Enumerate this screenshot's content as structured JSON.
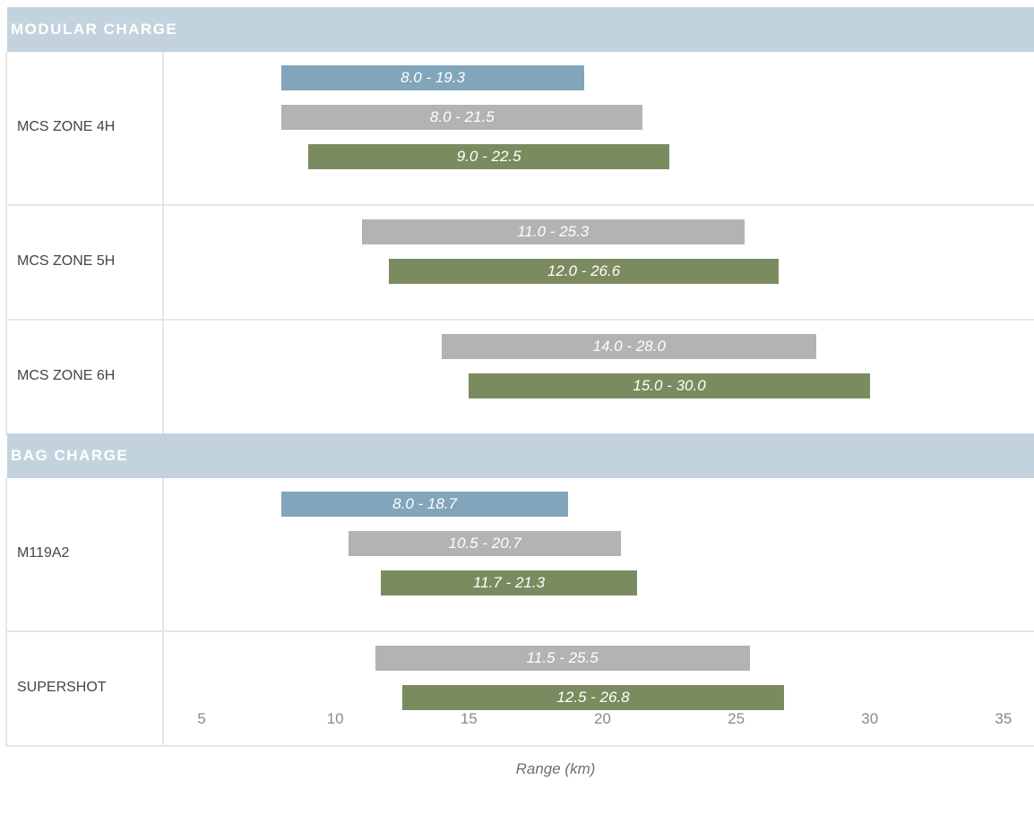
{
  "chart_data": {
    "type": "bar",
    "orientation": "horizontal-range",
    "xlabel": "Range (km)",
    "xlim": [
      5,
      35
    ],
    "xticks": [
      5,
      10,
      15,
      20,
      25,
      30,
      35
    ],
    "grid": false,
    "legend": "none",
    "colors": {
      "blue": "#81a5ba",
      "gray": "#b3b3b3",
      "green": "#7b8b60",
      "header": "#c3d3dd"
    },
    "groups": [
      {
        "name": "MODULAR CHARGE",
        "rows": [
          {
            "label": "MCS ZONE 4H",
            "bars": [
              {
                "color": "blue",
                "min": 8.0,
                "max": 19.3,
                "text": "8.0 - 19.3"
              },
              {
                "color": "gray",
                "min": 8.0,
                "max": 21.5,
                "text": "8.0 - 21.5"
              },
              {
                "color": "green",
                "min": 9.0,
                "max": 22.5,
                "text": "9.0 - 22.5"
              }
            ]
          },
          {
            "label": "MCS ZONE 5H",
            "bars": [
              {
                "color": "gray",
                "min": 11.0,
                "max": 25.3,
                "text": "11.0 - 25.3"
              },
              {
                "color": "green",
                "min": 12.0,
                "max": 26.6,
                "text": "12.0 - 26.6"
              }
            ]
          },
          {
            "label": "MCS ZONE 6H",
            "bars": [
              {
                "color": "gray",
                "min": 14.0,
                "max": 28.0,
                "text": "14.0 - 28.0"
              },
              {
                "color": "green",
                "min": 15.0,
                "max": 30.0,
                "text": "15.0 - 30.0"
              }
            ]
          }
        ]
      },
      {
        "name": "BAG CHARGE",
        "rows": [
          {
            "label": "M119A2",
            "bars": [
              {
                "color": "blue",
                "min": 8.0,
                "max": 18.7,
                "text": "8.0 - 18.7"
              },
              {
                "color": "gray",
                "min": 10.5,
                "max": 20.7,
                "text": "10.5 - 20.7"
              },
              {
                "color": "green",
                "min": 11.7,
                "max": 21.3,
                "text": "11.7 - 21.3"
              }
            ]
          },
          {
            "label": "SUPERSHOT",
            "bars": [
              {
                "color": "gray",
                "min": 11.5,
                "max": 25.5,
                "text": "11.5 - 25.5"
              },
              {
                "color": "green",
                "min": 12.5,
                "max": 26.8,
                "text": "12.5 - 26.8"
              }
            ]
          }
        ]
      }
    ]
  }
}
